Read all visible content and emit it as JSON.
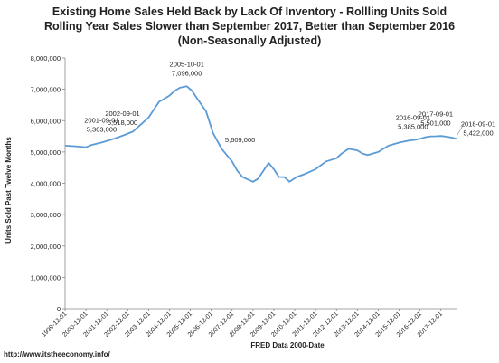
{
  "chart_data": {
    "type": "line",
    "title_lines": [
      "Existing Home Sales Held Back by Lack Of Inventory  - Rollling Units Sold",
      "Rolling Year Sales Slower than September 2017, Better than September 2016",
      "(Non-Seasonally Adjusted)"
    ],
    "ylabel": "Units Sold Past Twelve Months",
    "xlabel": "FRED Data 2000-Date",
    "ylim": [
      0,
      8000000
    ],
    "yticks": [
      0,
      1000000,
      2000000,
      3000000,
      4000000,
      5000000,
      6000000,
      7000000,
      8000000
    ],
    "ytick_labels": [
      "0",
      "1,000,000",
      "2,000,000",
      "3,000,000",
      "4,000,000",
      "5,000,000",
      "6,000,000",
      "7,000,000",
      "8,000,000"
    ],
    "xlim": [
      "1999-12-01",
      "2018-09-01"
    ],
    "xtick_labels": [
      "1999-12-01",
      "2000-12-01",
      "2001-12-01",
      "2002-12-01",
      "2003-12-01",
      "2004-12-01",
      "2005-12-01",
      "2006-12-01",
      "2007-12-01",
      "2008-12-01",
      "2009-12-01",
      "2010-12-01",
      "2011-12-01",
      "2012-12-01",
      "2013-12-01",
      "2014-12-01",
      "2015-12-01",
      "2016-12-01",
      "2017-12-01"
    ],
    "grid": false,
    "line_color": "#5b9bd5",
    "series": [
      {
        "x": [
          "1999-12-01",
          "2000-06-01",
          "2000-12-01",
          "2001-03-01",
          "2001-09-01",
          "2002-03-01",
          "2002-09-01",
          "2003-03-01",
          "2003-06-01",
          "2003-12-01",
          "2004-03-01",
          "2004-06-01",
          "2004-12-01",
          "2005-03-01",
          "2005-06-01",
          "2005-10-01",
          "2006-01-01",
          "2006-04-01",
          "2006-09-01",
          "2007-01-01",
          "2007-06-01",
          "2007-12-01",
          "2008-03-01",
          "2008-06-01",
          "2008-12-01",
          "2009-03-01",
          "2009-06-01",
          "2009-09-01",
          "2009-12-01",
          "2010-03-01",
          "2010-06-01",
          "2010-09-01",
          "2011-01-01",
          "2011-06-01",
          "2011-12-01",
          "2012-06-01",
          "2012-12-01",
          "2013-03-01",
          "2013-07-01",
          "2013-12-01",
          "2014-03-01",
          "2014-06-01",
          "2014-12-01",
          "2015-06-01",
          "2015-12-01",
          "2016-06-01",
          "2016-09-01",
          "2016-12-01",
          "2017-03-01",
          "2017-06-01",
          "2017-09-01",
          "2017-12-01",
          "2018-03-01",
          "2018-06-01",
          "2018-09-01"
        ],
        "values": [
          5200000,
          5180000,
          5150000,
          5220000,
          5303000,
          5400000,
          5518000,
          5650000,
          5800000,
          6100000,
          6350000,
          6600000,
          6800000,
          6950000,
          7050000,
          7096000,
          6950000,
          6700000,
          6300000,
          5609000,
          5100000,
          4700000,
          4400000,
          4200000,
          4050000,
          4150000,
          4400000,
          4650000,
          4450000,
          4200000,
          4200000,
          4050000,
          4200000,
          4300000,
          4450000,
          4700000,
          4800000,
          4950000,
          5100000,
          5050000,
          4950000,
          4900000,
          5000000,
          5200000,
          5300000,
          5370000,
          5385000,
          5420000,
          5470000,
          5500000,
          5501000,
          5510000,
          5490000,
          5460000,
          5422000
        ]
      }
    ],
    "annotations": [
      {
        "date": "2001-09-01",
        "value": 5303000,
        "date_label": "2001-09-01",
        "value_label": "5,303,000"
      },
      {
        "date": "2002-09-01",
        "value": 5518000,
        "date_label": "2002-09-01",
        "value_label": "5,518,000"
      },
      {
        "date": "2005-10-01",
        "value": 7096000,
        "date_label": "2005-10-01",
        "value_label": "7,096,000"
      },
      {
        "date": "2007-01-01",
        "value": 5609000,
        "date_label": "",
        "value_label": "5,609,000"
      },
      {
        "date": "2016-09-01",
        "value": 5385000,
        "date_label": "2016-09-01",
        "value_label": "5,385,000"
      },
      {
        "date": "2017-09-01",
        "value": 5501000,
        "date_label": "2017-09-01",
        "value_label": "5,501,000"
      },
      {
        "date": "2018-09-01",
        "value": 5422000,
        "date_label": "2018-09-01",
        "value_label": "5,422,000"
      }
    ]
  },
  "source_text": "http://www.itstheeconomy.info/"
}
